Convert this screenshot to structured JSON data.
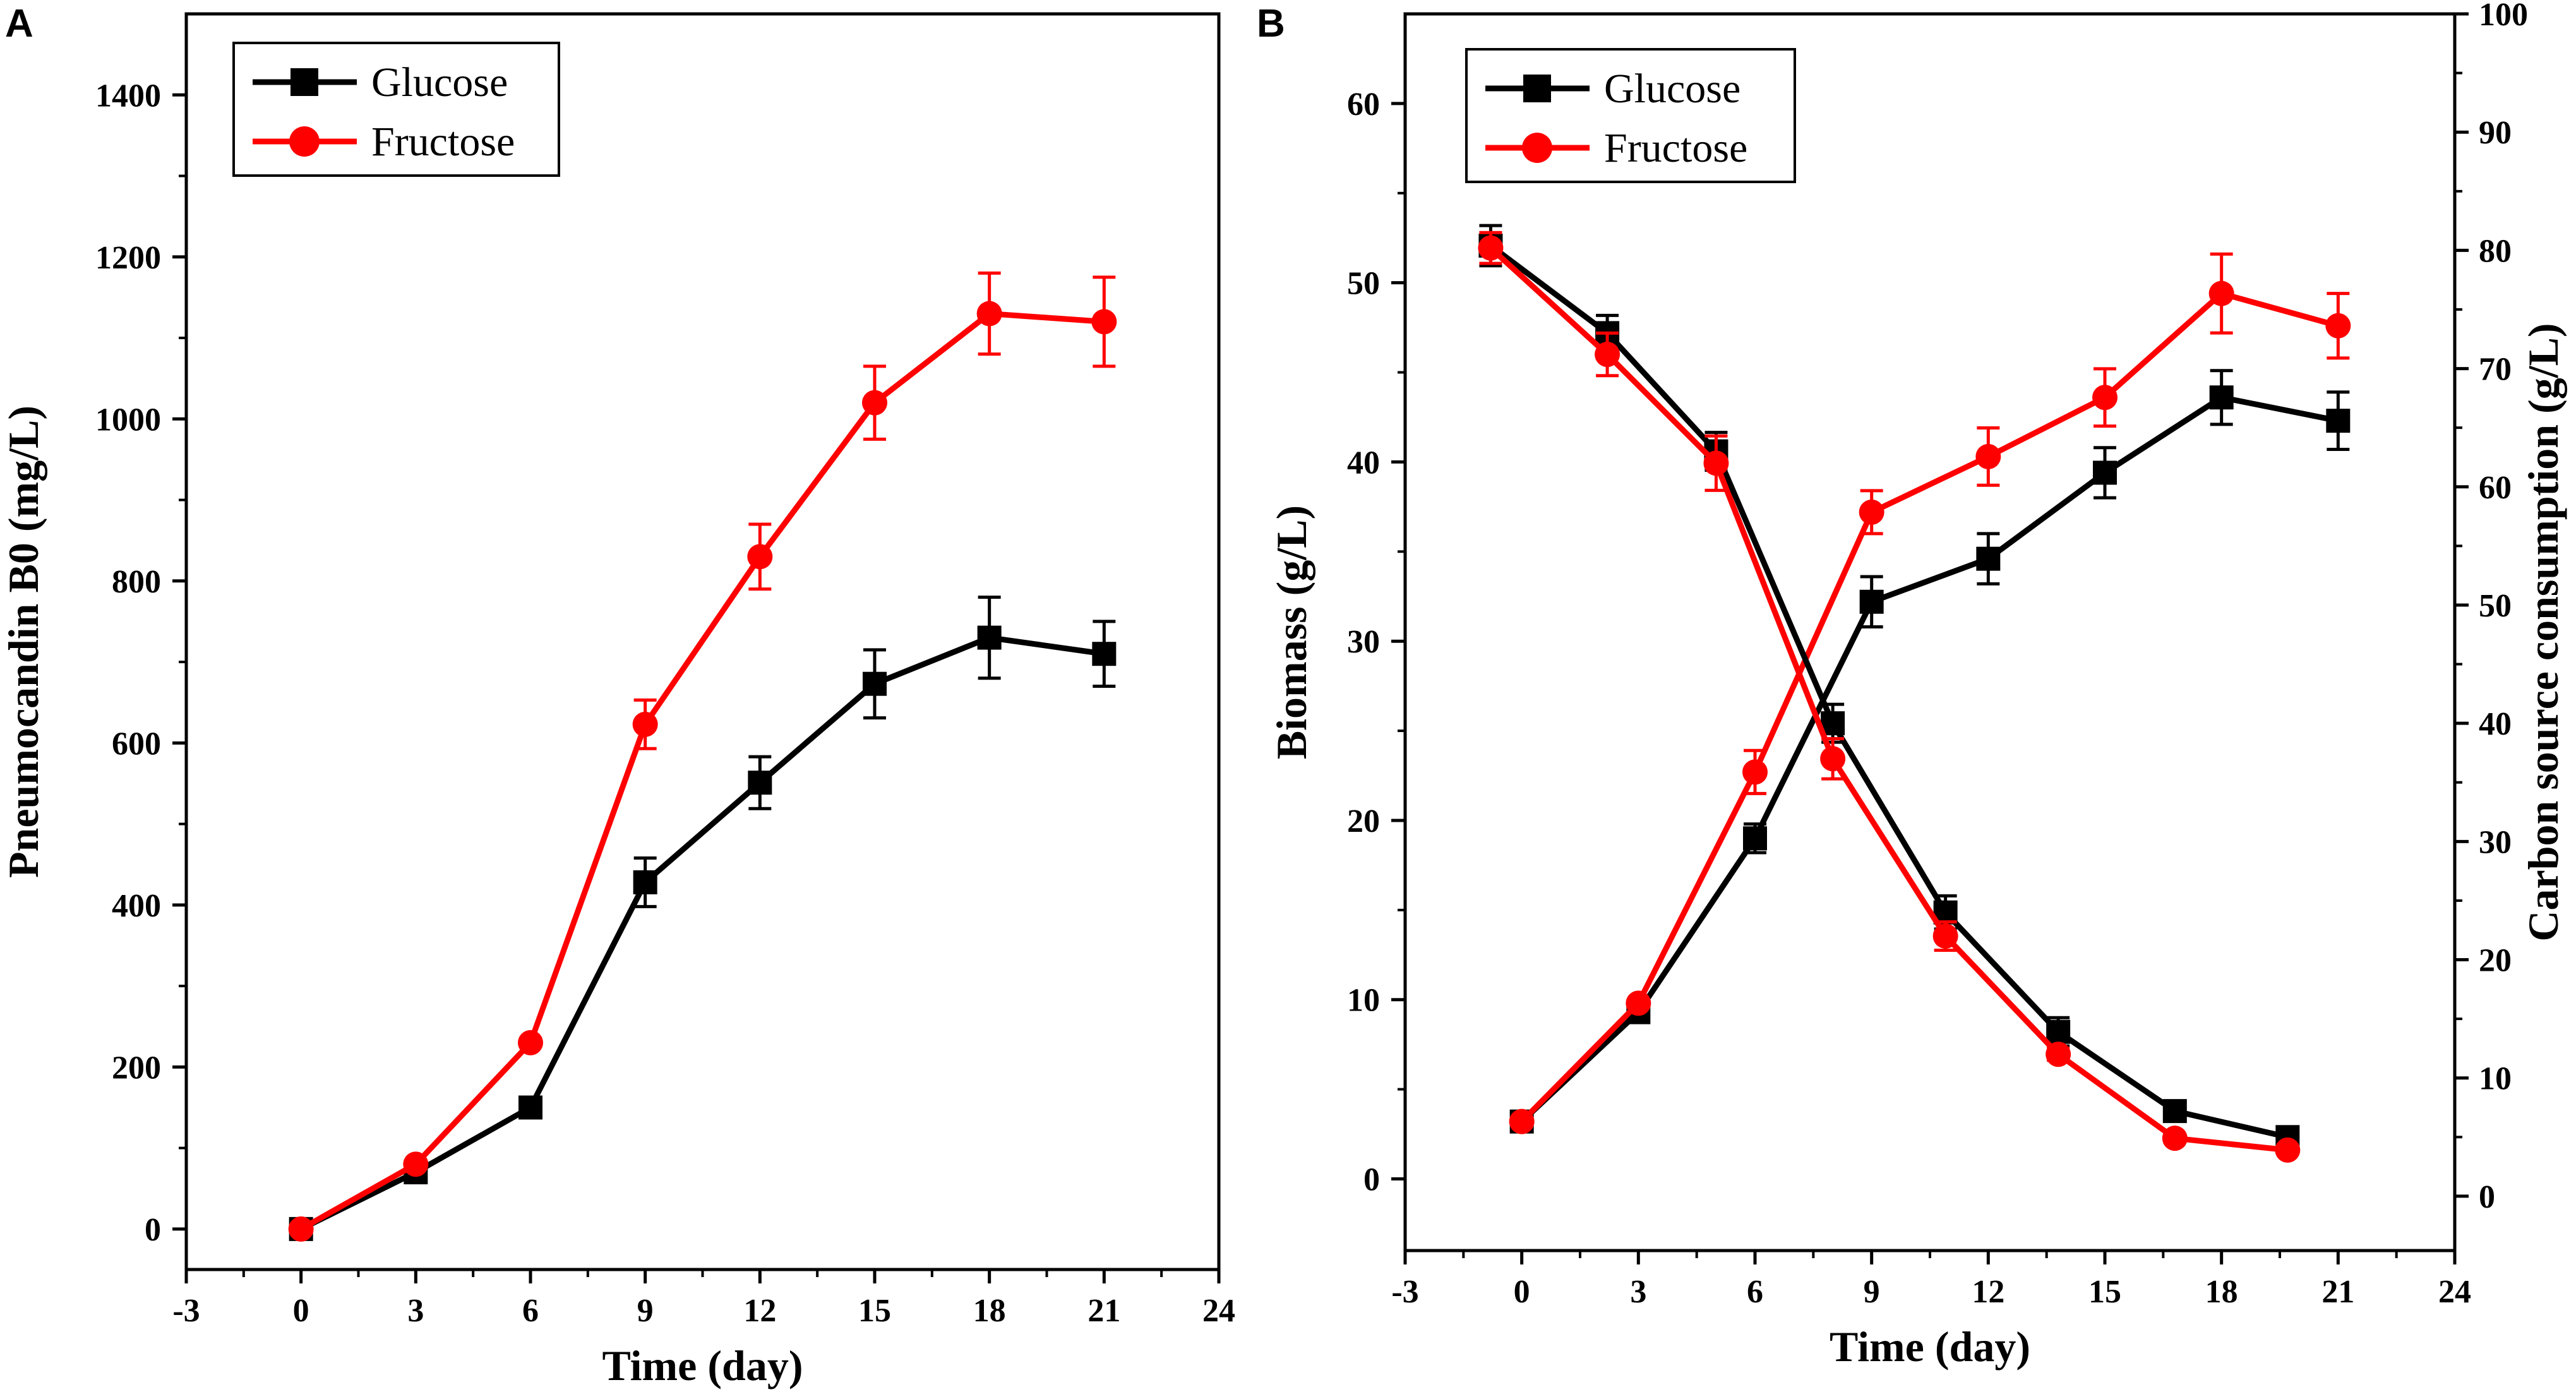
{
  "chart_data": [
    {
      "panel": "A",
      "type": "line",
      "xlabel": "Time (day)",
      "ylabel": "Pneumocandin B0 (mg/L)",
      "xlim": [
        -3,
        24
      ],
      "ylim": [
        -50,
        1500
      ],
      "x_ticks": [
        "-3",
        "0",
        "3",
        "6",
        "9",
        "12",
        "15",
        "18",
        "21",
        "24"
      ],
      "y_ticks": [
        "0",
        "200",
        "400",
        "600",
        "800",
        "1000",
        "1200",
        "1400"
      ],
      "legend": [
        "Glucose",
        "Fructose"
      ],
      "legend_position": "top-left",
      "series": [
        {
          "name": "Glucose",
          "color": "#000000",
          "marker": "square",
          "points": [
            {
              "x": 0,
              "y": 0,
              "err": 0
            },
            {
              "x": 3,
              "y": 70,
              "err": 0
            },
            {
              "x": 6,
              "y": 150,
              "err": 0
            },
            {
              "x": 9,
              "y": 428,
              "err": 30
            },
            {
              "x": 12,
              "y": 551,
              "err": 32
            },
            {
              "x": 15,
              "y": 673,
              "err": 42
            },
            {
              "x": 18,
              "y": 730,
              "err": 50
            },
            {
              "x": 21,
              "y": 710,
              "err": 40
            }
          ]
        },
        {
          "name": "Fructose",
          "color": "#ff0000",
          "marker": "circle",
          "points": [
            {
              "x": 0,
              "y": 0,
              "err": 0
            },
            {
              "x": 3,
              "y": 80,
              "err": 0
            },
            {
              "x": 6,
              "y": 230,
              "err": 0
            },
            {
              "x": 9,
              "y": 623,
              "err": 30
            },
            {
              "x": 12,
              "y": 830,
              "err": 40
            },
            {
              "x": 15,
              "y": 1020,
              "err": 45
            },
            {
              "x": 18,
              "y": 1130,
              "err": 50
            },
            {
              "x": 21,
              "y": 1120,
              "err": 55
            }
          ]
        }
      ]
    },
    {
      "panel": "B",
      "type": "line",
      "xlabel": "Time (day)",
      "ylabel": "Biomass (g/L)",
      "ylabel_right": "Carbon source consumption (g/L)",
      "xlim": [
        -3,
        24
      ],
      "ylim": [
        -4,
        65
      ],
      "ylim_right": [
        -4.6,
        100
      ],
      "x_ticks": [
        "-3",
        "0",
        "3",
        "6",
        "9",
        "12",
        "15",
        "18",
        "21",
        "24"
      ],
      "y_ticks": [
        "0",
        "10",
        "20",
        "30",
        "40",
        "50",
        "60"
      ],
      "y_ticks_right": [
        "0",
        "10",
        "20",
        "30",
        "40",
        "50",
        "60",
        "70",
        "80",
        "90",
        "100"
      ],
      "legend": [
        "Glucose",
        "Fructose"
      ],
      "legend_position": "top-left",
      "series": [
        {
          "name": "Glucose",
          "color": "#000000",
          "marker": "square",
          "axis": "left",
          "quantity": "biomass",
          "points": [
            {
              "x": 0,
              "y": 3.2,
              "err": 0
            },
            {
              "x": 3,
              "y": 9.3,
              "err": 0
            },
            {
              "x": 6,
              "y": 19.0,
              "err": 0.8
            },
            {
              "x": 9,
              "y": 32.2,
              "err": 1.4
            },
            {
              "x": 12,
              "y": 34.6,
              "err": 1.4
            },
            {
              "x": 15,
              "y": 39.4,
              "err": 1.4
            },
            {
              "x": 18,
              "y": 43.6,
              "err": 1.5
            },
            {
              "x": 21,
              "y": 42.3,
              "err": 1.6
            }
          ]
        },
        {
          "name": "Fructose",
          "color": "#ff0000",
          "marker": "circle",
          "axis": "left",
          "quantity": "biomass",
          "points": [
            {
              "x": 0,
              "y": 3.2,
              "err": 0
            },
            {
              "x": 3,
              "y": 9.8,
              "err": 0
            },
            {
              "x": 6,
              "y": 22.7,
              "err": 1.2
            },
            {
              "x": 9,
              "y": 37.2,
              "err": 1.2
            },
            {
              "x": 12,
              "y": 40.3,
              "err": 1.6
            },
            {
              "x": 15,
              "y": 43.6,
              "err": 1.6
            },
            {
              "x": 18,
              "y": 49.4,
              "err": 2.2
            },
            {
              "x": 21,
              "y": 47.6,
              "err": 1.8
            }
          ]
        },
        {
          "name": "Glucose",
          "color": "#000000",
          "marker": "square",
          "axis": "right",
          "quantity": "carbon source",
          "points": [
            {
              "x": -0.8,
              "y": 80.4,
              "err": 1.7
            },
            {
              "x": 2.2,
              "y": 73.0,
              "err": 1.5
            },
            {
              "x": 5.0,
              "y": 63.0,
              "err": 1.6
            },
            {
              "x": 8.0,
              "y": 40.0,
              "err": 1.6
            },
            {
              "x": 10.9,
              "y": 24.0,
              "err": 1.4
            },
            {
              "x": 13.8,
              "y": 13.9,
              "err": 1.2
            },
            {
              "x": 16.8,
              "y": 7.2,
              "err": 0.5
            },
            {
              "x": 19.7,
              "y": 5.0,
              "err": 0.5
            }
          ]
        },
        {
          "name": "Fructose",
          "color": "#ff0000",
          "marker": "circle",
          "axis": "right",
          "quantity": "carbon source",
          "points": [
            {
              "x": -0.8,
              "y": 80.2,
              "err": 1.3
            },
            {
              "x": 2.2,
              "y": 71.2,
              "err": 1.8
            },
            {
              "x": 5.0,
              "y": 62.0,
              "err": 2.3
            },
            {
              "x": 8.0,
              "y": 37.0,
              "err": 1.7
            },
            {
              "x": 10.9,
              "y": 22.0,
              "err": 1.2
            },
            {
              "x": 13.8,
              "y": 12.0,
              "err": 0.5
            },
            {
              "x": 16.8,
              "y": 4.9,
              "err": 0.3
            },
            {
              "x": 19.7,
              "y": 3.9,
              "err": 0.3
            }
          ]
        }
      ]
    }
  ]
}
